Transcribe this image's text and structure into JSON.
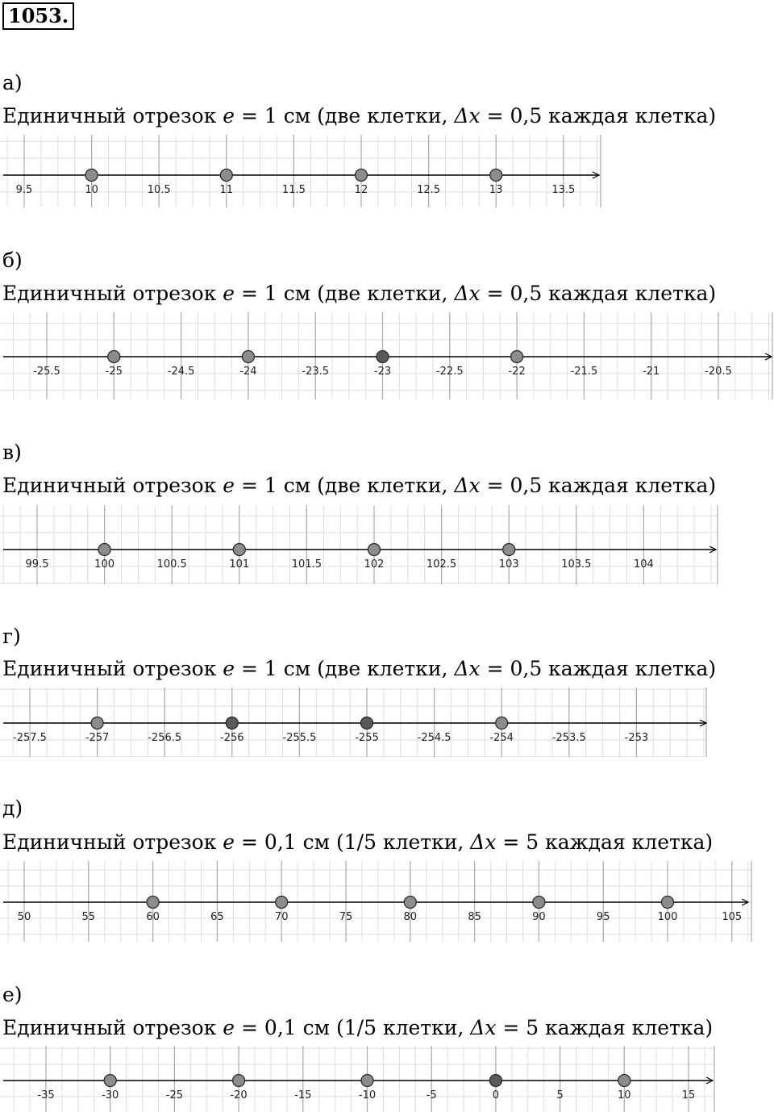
{
  "problem_number": "1053.",
  "parts": [
    {
      "label": "а)",
      "unit_label": "Единичный отрезок",
      "e_symbol": "e",
      "eq1": "= 1 см (две клетки,",
      "dx_symbol": "Δx",
      "eq2": "= 0,5  каждая клетка)",
      "ticks": [
        "9.5",
        "10",
        "10.5",
        "11",
        "11.5",
        "12",
        "12.5",
        "13",
        "13.5"
      ],
      "points": [
        10,
        11,
        12,
        13
      ],
      "dark_points": []
    },
    {
      "label": "б)",
      "unit_label": "Единичный отрезок",
      "e_symbol": "e",
      "eq1": "= 1 см (две клетки,",
      "dx_symbol": "Δx",
      "eq2": "= 0,5  каждая клетка)",
      "ticks": [
        "-25.5",
        "-25",
        "-24.5",
        "-24",
        "-23.5",
        "-23",
        "-22.5",
        "-22",
        "-21.5",
        "-21",
        "-20.5"
      ],
      "points": [
        -25,
        -24,
        -23,
        -22
      ],
      "dark_points": [
        -23
      ]
    },
    {
      "label": "в)",
      "unit_label": "Единичный отрезок",
      "e_symbol": "e",
      "eq1": "= 1 см (две клетки,",
      "dx_symbol": "Δx",
      "eq2": "= 0,5  каждая клетка)",
      "ticks": [
        "99.5",
        "100",
        "100.5",
        "101",
        "101.5",
        "102",
        "102.5",
        "103",
        "103.5",
        "104"
      ],
      "points": [
        100,
        101,
        102,
        103
      ],
      "dark_points": []
    },
    {
      "label": "г)",
      "unit_label": "Единичный отрезок",
      "e_symbol": "e",
      "eq1": "= 1 см (две клетки,",
      "dx_symbol": "Δx",
      "eq2": "= 0,5  каждая клетка)",
      "ticks": [
        "-257.5",
        "-257",
        "-256.5",
        "-256",
        "-255.5",
        "-255",
        "-254.5",
        "-254",
        "-253.5",
        "-253"
      ],
      "points": [
        -257,
        -256,
        -255,
        -254
      ],
      "dark_points": [
        -256,
        -255
      ]
    },
    {
      "label": "д)",
      "unit_label": "Единичный отрезок",
      "e_symbol": "e",
      "eq1": "= 0,1 см (1/5 клетки,",
      "dx_symbol": "Δx",
      "eq2": "= 5  каждая клетка)",
      "ticks": [
        "50",
        "55",
        "60",
        "65",
        "70",
        "75",
        "80",
        "85",
        "90",
        "95",
        "100",
        "105"
      ],
      "points": [
        60,
        70,
        80,
        90,
        100
      ],
      "dark_points": []
    },
    {
      "label": "е)",
      "unit_label": "Единичный отрезок",
      "e_symbol": "e",
      "eq1": "= 0,1 см (1/5 клетки,",
      "dx_symbol": "Δx",
      "eq2": "= 5  каждая клетка)",
      "ticks": [
        "-35",
        "-30",
        "-25",
        "-20",
        "-15",
        "-10",
        "-5",
        "0",
        "5",
        "10",
        "15"
      ],
      "points": [
        -30,
        -20,
        -10,
        0,
        10
      ],
      "dark_points": [
        0
      ]
    }
  ]
}
